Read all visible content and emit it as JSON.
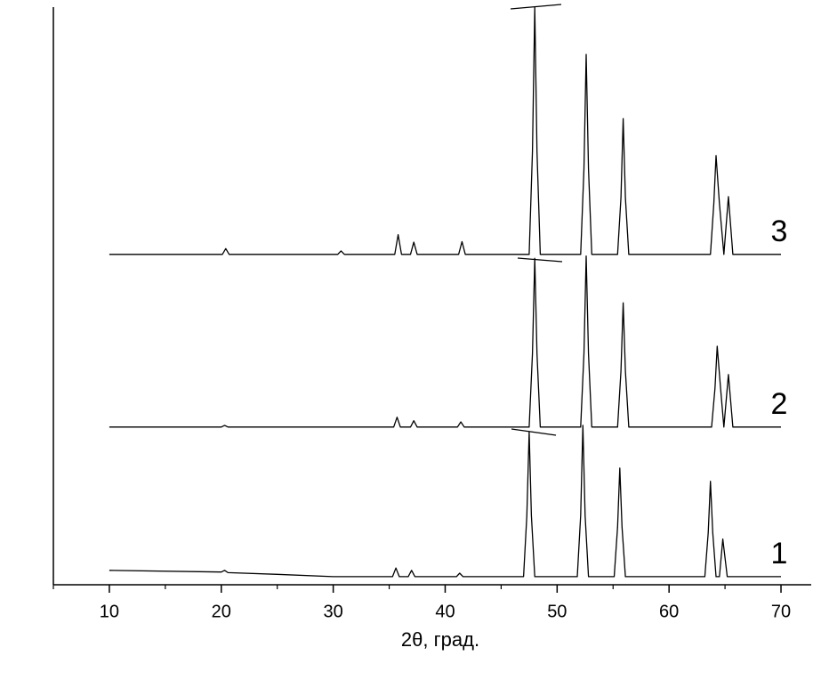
{
  "chart_data": {
    "type": "line",
    "xlabel": "2θ, град.",
    "xlim": [
      5,
      72.7
    ],
    "ylim": [
      0,
      100
    ],
    "xticks": [
      10,
      20,
      30,
      40,
      50,
      60,
      70
    ],
    "xminorticks": [
      5,
      15,
      25,
      35,
      45,
      55,
      65
    ],
    "series": [
      {
        "name": "1",
        "color": "#000000",
        "x": [
          10,
          20,
          20.3,
          20.6,
          25,
          30,
          35.3,
          35.6,
          35.9,
          36.7,
          37.0,
          37.3,
          41.0,
          41.3,
          41.6,
          47.0,
          47.3,
          47.5,
          47.7,
          48.0,
          51.8,
          52.1,
          52.3,
          52.5,
          52.8,
          55.1,
          55.4,
          55.6,
          55.8,
          56.1,
          63.2,
          63.5,
          63.7,
          63.9,
          64.2,
          64.5,
          64.8,
          65.2,
          70
        ],
        "values": [
          2.5,
          2.2,
          2.5,
          2.1,
          1.8,
          1.4,
          1.4,
          2.9,
          1.4,
          1.4,
          2.5,
          1.4,
          1.4,
          2.0,
          1.4,
          1.4,
          12,
          26.5,
          12,
          1.4,
          1.4,
          12,
          27.6,
          12,
          1.4,
          1.4,
          10,
          20.2,
          10,
          1.4,
          1.4,
          9,
          17.9,
          9,
          1.4,
          1.4,
          7.9,
          1.4,
          1.4
        ]
      },
      {
        "name": "2",
        "color": "#000000",
        "x": [
          10,
          20.0,
          20.3,
          20.6,
          35.4,
          35.7,
          36.0,
          36.9,
          37.2,
          37.5,
          41.1,
          41.4,
          41.7,
          47.5,
          47.8,
          48.0,
          48.2,
          48.5,
          52.1,
          52.4,
          52.6,
          52.8,
          53.1,
          55.4,
          55.7,
          55.9,
          56.1,
          56.4,
          63.8,
          64.1,
          64.3,
          64.6,
          64.9,
          65.3,
          65.7,
          70
        ],
        "values": [
          27.3,
          27.3,
          27.6,
          27.3,
          27.3,
          29.0,
          27.3,
          27.3,
          28.4,
          27.3,
          27.3,
          28.2,
          27.3,
          27.3,
          40,
          56.5,
          40,
          27.3,
          27.3,
          40,
          56.9,
          40,
          27.3,
          27.3,
          37,
          48.8,
          37,
          27.3,
          27.3,
          34,
          41.3,
          34,
          27.3,
          36.4,
          27.3,
          27.3
        ]
      },
      {
        "name": "3",
        "color": "#000000",
        "x": [
          10,
          20.1,
          20.4,
          20.7,
          30.4,
          30.7,
          31.0,
          35.5,
          35.8,
          36.1,
          36.9,
          37.2,
          37.5,
          41.2,
          41.5,
          41.8,
          47.5,
          47.8,
          48.0,
          48.2,
          48.5,
          52.1,
          52.4,
          52.6,
          52.8,
          53.1,
          55.4,
          55.7,
          55.9,
          56.1,
          56.4,
          63.7,
          64.0,
          64.2,
          64.5,
          64.9,
          65.3,
          65.7,
          70
        ],
        "values": [
          57.2,
          57.2,
          58.2,
          57.2,
          57.2,
          57.8,
          57.2,
          57.2,
          60.6,
          57.2,
          57.2,
          59.3,
          57.2,
          57.2,
          59.4,
          57.2,
          57.2,
          75,
          100,
          75,
          57.2,
          57.2,
          72,
          91.8,
          72,
          57.2,
          57.2,
          67,
          80.7,
          67,
          57.2,
          57.2,
          66,
          74.3,
          66,
          57.2,
          67.2,
          57.2,
          57.2
        ]
      }
    ]
  }
}
